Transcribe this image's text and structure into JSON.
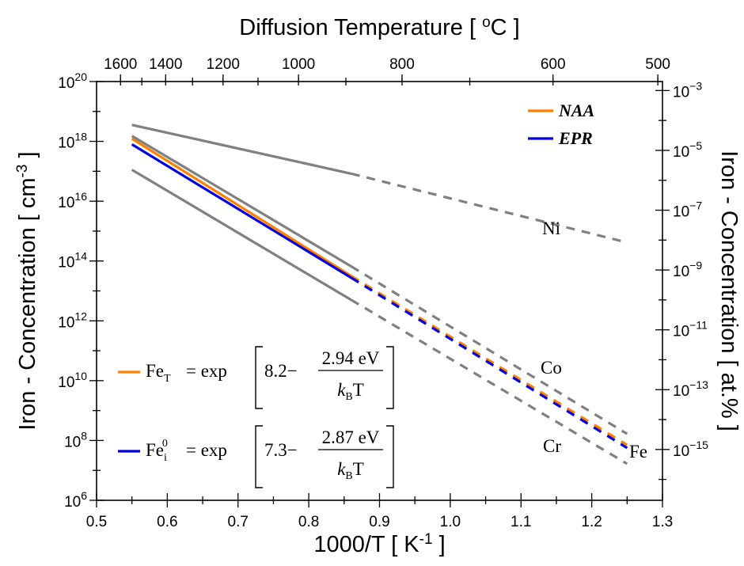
{
  "chart_data": {
    "type": "line",
    "xlabel": "1000/T [ K⁻¹ ]",
    "top_xlabel": "Diffusion Temperature [ °C ]",
    "ylabel_left": "Iron - Concentration [ cm⁻³ ]",
    "ylabel_right": "Iron - Concentration [ at.% ]",
    "xlim": [
      0.5,
      1.3
    ],
    "ylim": [
      6,
      20
    ],
    "y_scale": "log10",
    "x_ticks": [
      "0.5",
      "0.6",
      "0.7",
      "0.8",
      "0.9",
      "1.0",
      "1.1",
      "1.2",
      "1.3"
    ],
    "y_ticks_left": [
      "10^6",
      "10^8",
      "10^10",
      "10^12",
      "10^14",
      "10^16",
      "10^18",
      "10^20"
    ],
    "y_ticks_right": [
      "10^-3",
      "10^-5",
      "10^-7",
      "10^-9",
      "10^-11",
      "10^-13",
      "10^-15"
    ],
    "top_ticks": [
      {
        "label": "1600",
        "celsius": 1600
      },
      {
        "label": "1400",
        "celsius": 1400
      },
      {
        "label": "1200",
        "celsius": 1200
      },
      {
        "label": "1000",
        "celsius": 1000
      },
      {
        "label": "800",
        "celsius": 800
      },
      {
        "label": "600",
        "celsius": 600
      },
      {
        "label": "500",
        "celsius": 500
      }
    ],
    "series": [
      {
        "name": "Ni",
        "color": "#808080",
        "solid": [
          [
            0.55,
            18.55
          ],
          [
            0.86,
            16.92
          ]
        ],
        "dashed": [
          [
            0.86,
            16.92
          ],
          [
            1.25,
            14.62
          ]
        ]
      },
      {
        "name": "Co",
        "color": "#808080",
        "solid": [
          [
            0.55,
            18.18
          ],
          [
            0.86,
            13.82
          ]
        ],
        "dashed": [
          [
            0.86,
            13.82
          ],
          [
            1.25,
            8.22
          ]
        ]
      },
      {
        "name": "NAA",
        "color": "#ff8000",
        "solid": [
          [
            0.55,
            18.09
          ],
          [
            0.86,
            13.5
          ]
        ],
        "dashed": [
          [
            0.86,
            13.5
          ],
          [
            1.25,
            7.85
          ]
        ]
      },
      {
        "name": "EPR",
        "color": "#0000e0",
        "solid": [
          [
            0.55,
            17.9
          ],
          [
            0.86,
            13.44
          ]
        ],
        "dashed": [
          [
            0.86,
            13.44
          ],
          [
            1.25,
            7.75
          ]
        ]
      },
      {
        "name": "Cr",
        "color": "#808080",
        "solid": [
          [
            0.55,
            17.05
          ],
          [
            0.86,
            12.7
          ]
        ],
        "dashed": [
          [
            0.86,
            12.7
          ],
          [
            1.25,
            7.22
          ]
        ]
      }
    ],
    "legend": {
      "placement": "top-right",
      "entries": [
        "NAA",
        "EPR"
      ]
    },
    "curve_labels": [
      "Ni",
      "Co",
      "Cr",
      "Fe"
    ],
    "formulas": [
      {
        "color": "#ff8000",
        "lhs": "Fe",
        "lhs_sub": "T",
        "prefactor": "8.2",
        "energy": "2.94 eV"
      },
      {
        "color": "#0000e0",
        "lhs": "Fe",
        "lhs_sub": "i",
        "lhs_sup": "0",
        "prefactor": "7.3",
        "energy": "2.87 eV"
      }
    ],
    "formula_text": {
      "eq": "= exp",
      "minus": "−",
      "kb": "k",
      "kb_sub": "B",
      "temp": "T"
    }
  }
}
